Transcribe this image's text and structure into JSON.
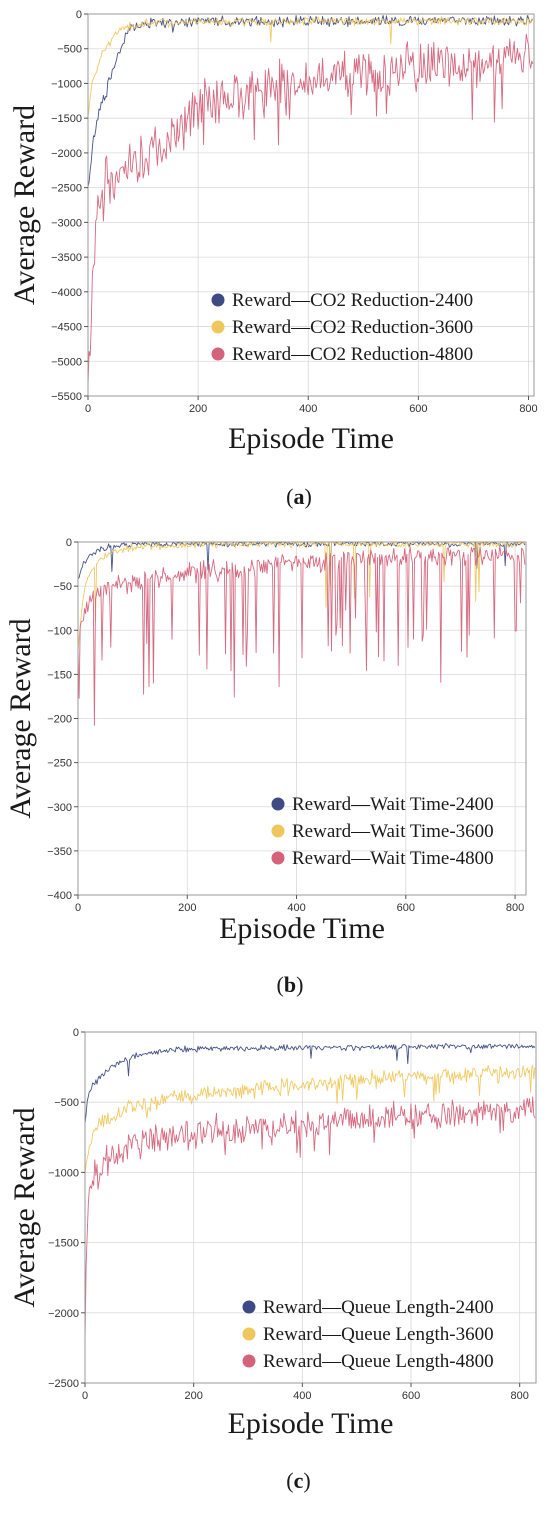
{
  "colors": {
    "2400": "#3d4a84",
    "3600": "#f0c75c",
    "4800": "#d4627a"
  },
  "chart_data": [
    {
      "type": "line",
      "caption_letter": "a",
      "xlabel": "Episode Time",
      "ylabel": "Average Reward",
      "xlim": [
        0,
        810
      ],
      "ylim": [
        -5500,
        0
      ],
      "xticks": [
        0,
        200,
        400,
        600,
        800
      ],
      "yticks": [
        0,
        -500,
        -1000,
        -1500,
        -2000,
        -2500,
        -3000,
        -3500,
        -4000,
        -4500,
        -5000,
        -5500
      ],
      "legend_position": "bottom-right",
      "grid": true,
      "series": [
        {
          "name": "Reward—CO2 Reduction-2400",
          "color_key": "2400",
          "x": [
            0,
            10,
            20,
            30,
            40,
            50,
            60,
            70,
            80,
            100,
            150,
            200,
            300,
            400,
            500,
            600,
            700,
            810
          ],
          "y": [
            -2500,
            -1800,
            -1400,
            -1200,
            -900,
            -700,
            -500,
            -300,
            -200,
            -150,
            -120,
            -110,
            -110,
            -105,
            -105,
            -100,
            -100,
            -100
          ]
        },
        {
          "name": "Reward—CO2 Reduction-3600",
          "color_key": "3600",
          "x": [
            0,
            5,
            10,
            20,
            30,
            40,
            50,
            60,
            80,
            100,
            150,
            200,
            300,
            400,
            500,
            600,
            700,
            810
          ],
          "y": [
            -1500,
            -1100,
            -900,
            -700,
            -500,
            -400,
            -300,
            -220,
            -170,
            -140,
            -120,
            -110,
            -110,
            -105,
            -105,
            -100,
            -100,
            -100
          ]
        },
        {
          "name": "Reward—CO2 Reduction-4800",
          "color_key": "4800",
          "x": [
            0,
            5,
            10,
            15,
            20,
            30,
            50,
            80,
            100,
            150,
            200,
            250,
            300,
            350,
            400,
            450,
            500,
            550,
            600,
            650,
            700,
            750,
            810
          ],
          "y": [
            -5400,
            -4600,
            -3500,
            -3000,
            -2600,
            -2400,
            -2300,
            -2200,
            -2100,
            -1800,
            -1300,
            -1200,
            -1100,
            -1000,
            -950,
            -900,
            -850,
            -800,
            -750,
            -700,
            -650,
            -600,
            -550
          ]
        }
      ]
    },
    {
      "type": "line",
      "caption_letter": "b",
      "xlabel": "Episode Time",
      "ylabel": "Average Reward",
      "xlim": [
        0,
        820
      ],
      "ylim": [
        -400,
        0
      ],
      "xticks": [
        0,
        200,
        400,
        600,
        800
      ],
      "yticks": [
        0,
        -50,
        -100,
        -150,
        -200,
        -250,
        -300,
        -350,
        -400
      ],
      "legend_position": "bottom-right",
      "grid": true,
      "series": [
        {
          "name": "Reward—Wait Time-2400",
          "color_key": "2400",
          "x": [
            0,
            10,
            20,
            40,
            60,
            100,
            200,
            400,
            600,
            810
          ],
          "y": [
            -40,
            -25,
            -15,
            -8,
            -5,
            -3,
            -2,
            -2,
            -2,
            -2
          ]
        },
        {
          "name": "Reward—Wait Time-3600",
          "color_key": "3600",
          "x": [
            0,
            10,
            20,
            40,
            60,
            100,
            200,
            400,
            600,
            810
          ],
          "y": [
            -120,
            -60,
            -35,
            -20,
            -12,
            -6,
            -3,
            -2,
            -2,
            -2
          ]
        },
        {
          "name": "Reward—Wait Time-4800",
          "color_key": "4800",
          "x": [
            0,
            10,
            30,
            60,
            100,
            200,
            300,
            400,
            500,
            600,
            700,
            810
          ],
          "y": [
            -110,
            -80,
            -60,
            -50,
            -45,
            -35,
            -30,
            -25,
            -20,
            -18,
            -15,
            -15
          ]
        }
      ]
    },
    {
      "type": "line",
      "caption_letter": "c",
      "xlabel": "Episode Time",
      "ylabel": "Average Reward",
      "xlim": [
        0,
        830
      ],
      "ylim": [
        -2500,
        0
      ],
      "xticks": [
        0,
        200,
        400,
        600,
        800
      ],
      "yticks": [
        0,
        -500,
        -1000,
        -1500,
        -2000,
        -2500
      ],
      "legend_position": "bottom-right",
      "grid": true,
      "series": [
        {
          "name": "Reward—Queue Length-2400",
          "color_key": "2400",
          "x": [
            0,
            5,
            10,
            20,
            40,
            60,
            100,
            150,
            200,
            300,
            400,
            500,
            600,
            700,
            830
          ],
          "y": [
            -650,
            -450,
            -400,
            -350,
            -280,
            -220,
            -160,
            -130,
            -120,
            -115,
            -110,
            -110,
            -105,
            -105,
            -100
          ]
        },
        {
          "name": "Reward—Queue Length-3600",
          "color_key": "3600",
          "x": [
            0,
            5,
            10,
            20,
            40,
            60,
            100,
            150,
            200,
            300,
            400,
            500,
            600,
            700,
            830
          ],
          "y": [
            -1000,
            -850,
            -780,
            -700,
            -620,
            -580,
            -520,
            -480,
            -450,
            -420,
            -380,
            -340,
            -320,
            -300,
            -280
          ]
        },
        {
          "name": "Reward—Queue Length-4800",
          "color_key": "4800",
          "x": [
            0,
            3,
            6,
            10,
            20,
            40,
            60,
            100,
            150,
            200,
            300,
            400,
            500,
            600,
            700,
            830
          ],
          "y": [
            -2200,
            -1500,
            -1200,
            -1100,
            -1000,
            -900,
            -850,
            -780,
            -740,
            -700,
            -680,
            -650,
            -620,
            -600,
            -580,
            -550
          ]
        }
      ]
    }
  ]
}
